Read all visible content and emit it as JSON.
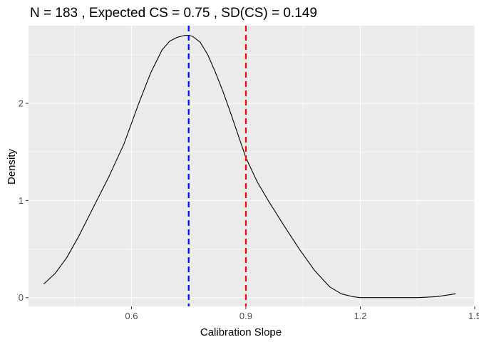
{
  "chart_data": {
    "type": "line",
    "title": "N =  183 , Expected CS =  0.75 , SD(CS) =  0.149",
    "xlabel": "Calibration Slope",
    "ylabel": "Density",
    "xlim": [
      0.33,
      1.5
    ],
    "ylim": [
      -0.09,
      2.8
    ],
    "x_ticks": [
      {
        "value": 0.6,
        "label": "0.6"
      },
      {
        "value": 0.9,
        "label": "0.9"
      },
      {
        "value": 1.2,
        "label": "1.2"
      },
      {
        "value": 1.5,
        "label": "1.5"
      }
    ],
    "y_ticks": [
      {
        "value": 0,
        "label": "0"
      },
      {
        "value": 1,
        "label": "1"
      },
      {
        "value": 2,
        "label": "2"
      }
    ],
    "grid": true,
    "panel_background": "#EBEBEB",
    "series": [
      {
        "color": "#000000",
        "x": [
          0.37,
          0.4,
          0.43,
          0.46,
          0.5,
          0.54,
          0.58,
          0.62,
          0.65,
          0.68,
          0.7,
          0.72,
          0.74,
          0.75,
          0.76,
          0.78,
          0.8,
          0.82,
          0.84,
          0.86,
          0.88,
          0.9,
          0.93,
          0.96,
          1.0,
          1.04,
          1.08,
          1.12,
          1.15,
          1.18,
          1.2,
          1.25,
          1.3,
          1.35,
          1.4,
          1.45
        ],
        "y": [
          0.14,
          0.25,
          0.41,
          0.62,
          0.93,
          1.24,
          1.58,
          2.01,
          2.31,
          2.55,
          2.64,
          2.68,
          2.7,
          2.7,
          2.69,
          2.63,
          2.5,
          2.32,
          2.12,
          1.9,
          1.67,
          1.44,
          1.19,
          0.99,
          0.74,
          0.5,
          0.28,
          0.11,
          0.04,
          0.01,
          0.0,
          0.0,
          0.0,
          0.0,
          0.01,
          0.04
        ]
      }
    ],
    "vlines": [
      {
        "value": 0.75,
        "color": "#0000FF",
        "style": "dashed"
      },
      {
        "value": 0.9,
        "color": "#FF0000",
        "style": "dashed"
      }
    ]
  }
}
